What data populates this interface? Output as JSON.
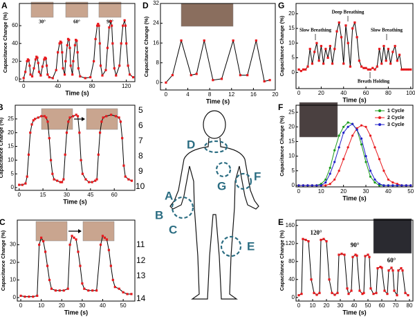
{
  "chart_data": [
    {
      "type": "line",
      "panel": "A",
      "xlabel": "Time (s)",
      "ylabel": "Capacitance Change (%)",
      "xlim": [
        -5,
        130
      ],
      "xticks": [
        0,
        40,
        80,
        120
      ],
      "ylim": [
        -3,
        85
      ],
      "yticks": [
        0,
        20,
        40,
        60
      ],
      "line_color": "#000000",
      "marker_color": "#e8191d",
      "annotations": [
        "30°",
        "60°",
        "90°"
      ],
      "x": [
        0,
        2,
        4,
        5,
        6,
        7,
        8,
        10,
        12,
        14,
        15,
        16,
        17,
        18,
        20,
        22,
        24,
        25,
        26,
        27,
        28,
        30,
        34,
        38,
        40,
        42,
        43,
        44,
        45,
        46,
        48,
        49,
        51,
        52,
        53,
        54,
        55,
        57,
        58,
        60,
        61,
        62,
        63,
        64,
        66,
        72,
        78,
        82,
        84,
        86,
        87,
        88,
        89,
        90,
        92,
        96,
        98,
        100,
        102,
        103,
        104,
        106,
        108,
        112,
        114,
        116,
        118,
        119,
        120,
        122,
        124,
        128
      ],
      "values": [
        1,
        8,
        20,
        22,
        21,
        15,
        5,
        3,
        12,
        22,
        25,
        24,
        18,
        8,
        4,
        14,
        22,
        24,
        23,
        15,
        5,
        2,
        1,
        10,
        30,
        40,
        42,
        41,
        30,
        12,
        5,
        20,
        38,
        45,
        44,
        35,
        15,
        5,
        20,
        38,
        44,
        43,
        30,
        12,
        3,
        1,
        2,
        20,
        45,
        60,
        62,
        60,
        40,
        15,
        4,
        10,
        35,
        58,
        65,
        60,
        40,
        12,
        4,
        15,
        40,
        60,
        66,
        60,
        40,
        15,
        5,
        2
      ]
    },
    {
      "type": "line",
      "panel": "B",
      "xlabel": "Time (s)",
      "ylabel": "Capacitance Change (%)",
      "xlim": [
        -2.5,
        73
      ],
      "xticks": [
        0,
        15,
        30,
        45,
        60
      ],
      "ylim": [
        -1,
        30
      ],
      "yticks": [
        0,
        5,
        10,
        15,
        20,
        25
      ],
      "line_color": "#000000",
      "marker_color": "#e8191d",
      "annotations": [
        "5",
        "6",
        "7",
        "8",
        "9",
        "10"
      ],
      "x": [
        0,
        2,
        4,
        5,
        6,
        7,
        8,
        9,
        10,
        12,
        14,
        16,
        17,
        18,
        19,
        20,
        21,
        22,
        24,
        26,
        27,
        28,
        29,
        30,
        31,
        32,
        34,
        36,
        37,
        38,
        39,
        40,
        42,
        44,
        46,
        48,
        49,
        50,
        51,
        52,
        53,
        55,
        58,
        61,
        63,
        64,
        65,
        66,
        67,
        69,
        71
      ],
      "values": [
        1,
        1,
        1.5,
        4,
        12,
        20,
        23,
        24.5,
        25,
        25.5,
        26,
        26,
        25.5,
        24,
        18,
        10,
        5,
        3,
        2.5,
        2,
        2,
        3,
        12,
        20,
        24,
        25.5,
        26,
        26.5,
        26,
        20,
        10,
        5,
        3,
        2,
        2,
        2.5,
        3,
        12,
        20,
        24,
        25.5,
        26,
        26.5,
        26,
        25.5,
        24,
        18,
        8,
        4,
        3,
        2.5
      ]
    },
    {
      "type": "line",
      "panel": "C",
      "xlabel": "Time (s)",
      "ylabel": "Capacitance Change (%)",
      "xlim": [
        -1.7,
        55.7
      ],
      "xticks": [
        0,
        10,
        20,
        30,
        40,
        50
      ],
      "ylim": [
        -2,
        44
      ],
      "yticks": [
        0,
        10,
        20,
        30
      ],
      "line_color": "#000000",
      "marker_color": "#e8191d",
      "annotations": [
        "11",
        "12",
        "13",
        "14"
      ],
      "x": [
        0,
        2,
        4,
        6,
        8,
        9,
        10,
        11,
        12,
        13,
        14,
        15,
        17,
        19,
        21,
        23,
        24,
        25,
        26,
        27,
        28,
        29,
        30,
        31,
        33,
        35,
        37,
        39,
        40,
        41,
        42,
        43,
        44,
        45,
        46,
        48,
        50,
        52,
        54
      ],
      "values": [
        1,
        0.5,
        0.5,
        0.5,
        1,
        30,
        34,
        32,
        26,
        18,
        10,
        5,
        4,
        4,
        4,
        5,
        30,
        35,
        34,
        33,
        26,
        18,
        8,
        5,
        4,
        4,
        4,
        30,
        35,
        34,
        33,
        27,
        18,
        10,
        6,
        5,
        3,
        2,
        2
      ]
    },
    {
      "type": "line",
      "panel": "D",
      "xlabel": "Time (s)",
      "ylabel": "Capacitance Change (%)",
      "xlim": [
        -1,
        20
      ],
      "xticks": [
        0,
        4,
        8,
        12,
        16,
        20
      ],
      "ylim": [
        -3,
        32
      ],
      "yticks": [
        0,
        8,
        16,
        24,
        32
      ],
      "line_color": "#000000",
      "marker_color": "#e8191d",
      "x": [
        0,
        1.2,
        2.8,
        4.6,
        5.6,
        7,
        8.6,
        10.2,
        12.3,
        13.6,
        14.9,
        16.5,
        18,
        19
      ],
      "values": [
        0,
        3,
        17,
        3,
        3.5,
        17,
        1,
        1.5,
        17,
        3,
        3,
        17,
        0.5,
        1
      ]
    },
    {
      "type": "line",
      "panel": "G",
      "xlabel": "Time (s)",
      "ylabel": "Capacitance Change (%)",
      "xlim": [
        -2.5,
        102
      ],
      "xticks": [
        0,
        20,
        40,
        60,
        80,
        100
      ],
      "ylim": [
        -5.5,
        23.5
      ],
      "yticks": [
        0,
        5,
        10,
        15,
        20
      ],
      "line_color": "#000000",
      "marker_color": "#e8191d",
      "annotations": [
        "Slow Breathing",
        "Deep Breathing",
        "Slow Breathing",
        "Breath Holding"
      ],
      "x": [
        0,
        2,
        4,
        6,
        8,
        10,
        12,
        14,
        16,
        18,
        20,
        22,
        24,
        26,
        28,
        30,
        32,
        34,
        36,
        38,
        40,
        42,
        44,
        46,
        48,
        50,
        52,
        54,
        56,
        58,
        60,
        62,
        64,
        66,
        68,
        70,
        72,
        74,
        76,
        78,
        80,
        82,
        84,
        86,
        88,
        90,
        92,
        94,
        96,
        98,
        100
      ],
      "values": [
        1,
        0.5,
        1,
        1,
        2,
        8,
        3,
        7,
        10,
        4,
        9,
        3,
        8,
        5,
        9,
        3,
        8,
        14,
        17,
        12,
        3,
        16,
        10,
        2,
        15,
        17,
        12,
        4,
        2,
        1.5,
        1.5,
        1,
        1,
        1.5,
        1,
        2,
        8,
        3,
        9,
        4,
        8,
        3,
        7,
        9,
        4,
        6,
        1,
        1,
        1,
        1,
        1
      ]
    },
    {
      "type": "line",
      "panel": "F",
      "xlabel": "Time (s)",
      "ylabel": "Capacitance Change (%)",
      "xlim": [
        -1.2,
        51
      ],
      "xticks": [
        0,
        10,
        20,
        30,
        40,
        50
      ],
      "ylim": [
        -0.5,
        27.4
      ],
      "yticks": [
        0,
        5,
        10,
        15,
        20,
        25
      ],
      "x": [
        0,
        2,
        4,
        6,
        8,
        10,
        12,
        14,
        16,
        18,
        20,
        22,
        24,
        26,
        28,
        30,
        32,
        34,
        36,
        38,
        40,
        42,
        44,
        46,
        48,
        50
      ],
      "series": [
        {
          "name": "1 Cycle",
          "color": "#1a9a1a",
          "values": [
            0,
            0,
            0,
            0,
            0,
            0.5,
            2,
            6,
            12,
            17,
            20,
            21.5,
            21,
            19,
            14,
            8,
            3,
            1,
            0,
            0,
            0,
            0,
            0,
            0,
            0,
            0
          ]
        },
        {
          "name": "2 Cycle",
          "color": "#e8191d",
          "values": [
            0,
            0,
            0,
            0,
            0,
            0,
            0,
            0.5,
            2,
            5,
            9,
            13,
            17,
            19.5,
            20.5,
            20,
            17,
            13,
            9,
            5,
            2,
            1,
            0.5,
            0,
            0,
            0
          ]
        },
        {
          "name": "3 Cycle",
          "color": "#1f1fc8",
          "values": [
            0,
            0,
            0,
            0,
            0,
            0,
            1,
            4,
            8,
            13,
            18,
            20,
            21,
            19,
            16,
            10,
            5,
            2,
            0.5,
            0,
            0,
            0,
            0,
            0,
            0,
            0
          ]
        }
      ]
    },
    {
      "type": "line",
      "panel": "E",
      "xlabel": "Time (s)",
      "ylabel": "Capacitance Change (%)",
      "xlim": [
        -2,
        82.5
      ],
      "xticks": [
        0,
        10,
        20,
        30,
        40,
        50,
        60,
        70,
        80
      ],
      "ylim": [
        -8,
        172
      ],
      "yticks": [
        0,
        40,
        80,
        120,
        160
      ],
      "line_color": "#000000",
      "marker_color": "#e8191d",
      "annotations": [
        "120°",
        "90°",
        "60°"
      ],
      "x": [
        0,
        2,
        3,
        5,
        7,
        9,
        11,
        13,
        15,
        16,
        18,
        20,
        22,
        24,
        26,
        28,
        29,
        31,
        33,
        35,
        36,
        38,
        39,
        41,
        42,
        44,
        46,
        47,
        48,
        50,
        51,
        52,
        54,
        56,
        57,
        59,
        60,
        62,
        64,
        65,
        67,
        68,
        69,
        71,
        72,
        74,
        75,
        77,
        79
      ],
      "values": [
        5,
        8,
        130,
        128,
        125,
        40,
        10,
        6,
        10,
        128,
        130,
        125,
        40,
        10,
        6,
        10,
        95,
        97,
        95,
        20,
        8,
        15,
        90,
        95,
        93,
        15,
        8,
        10,
        92,
        95,
        90,
        20,
        8,
        10,
        65,
        68,
        66,
        15,
        8,
        60,
        66,
        60,
        15,
        5,
        60,
        65,
        60,
        10,
        5
      ]
    }
  ],
  "diagram": {
    "labels": [
      "A",
      "B",
      "C",
      "D",
      "E",
      "F",
      "G"
    ]
  }
}
